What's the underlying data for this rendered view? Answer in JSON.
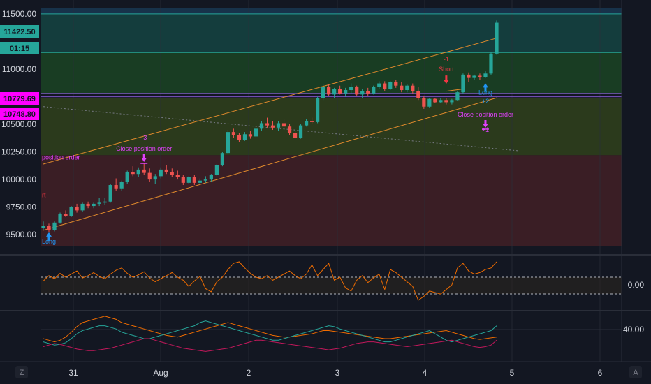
{
  "chart_data": {
    "type": "candlestick",
    "x_axis": {
      "labels": [
        "31",
        "Aug",
        "2",
        "3",
        "4",
        "5",
        "6"
      ]
    },
    "price_axis": {
      "ticks": [
        "11500.00",
        "11000.00",
        "10500.00",
        "10250.00",
        "10000.00",
        "9750.00",
        "9500.00"
      ],
      "ylim": [
        9400,
        11550
      ]
    },
    "badges": {
      "last_price": "11422.50",
      "countdown": "01:15",
      "level_upper": "10779.69",
      "level_lower": "10748.80",
      "last_price_color": "#26a69a",
      "level_color": "#ff00ff"
    },
    "zones": [
      {
        "from": 11500,
        "to": 11550,
        "color": "#17324a"
      },
      {
        "from": 11150,
        "to": 11500,
        "color": "#143d3d"
      },
      {
        "from": 10780,
        "to": 11150,
        "color": "#193d23"
      },
      {
        "from": 10220,
        "to": 10740,
        "color": "#2b3a1c"
      },
      {
        "from": 9400,
        "to": 10220,
        "color": "#3a1e25"
      }
    ],
    "levels": [
      11500,
      11150,
      10780,
      10749
    ],
    "candles": [
      [
        9560,
        9620,
        9540,
        9580
      ],
      [
        9580,
        9600,
        9520,
        9540
      ],
      [
        9540,
        9620,
        9530,
        9610
      ],
      [
        9610,
        9700,
        9600,
        9690
      ],
      [
        9690,
        9720,
        9660,
        9670
      ],
      [
        9670,
        9760,
        9660,
        9750
      ],
      [
        9750,
        9780,
        9700,
        9720
      ],
      [
        9720,
        9790,
        9710,
        9780
      ],
      [
        9780,
        9800,
        9740,
        9760
      ],
      [
        9760,
        9790,
        9740,
        9780
      ],
      [
        9780,
        9830,
        9760,
        9790
      ],
      [
        9790,
        9830,
        9770,
        9800
      ],
      [
        9800,
        9960,
        9790,
        9950
      ],
      [
        9950,
        10010,
        9900,
        9920
      ],
      [
        9920,
        9990,
        9900,
        9980
      ],
      [
        9980,
        10080,
        9960,
        10070
      ],
      [
        10070,
        10120,
        10030,
        10050
      ],
      [
        10050,
        10110,
        10020,
        10090
      ],
      [
        10090,
        10150,
        10040,
        10060
      ],
      [
        10060,
        10100,
        9980,
        10000
      ],
      [
        10000,
        10050,
        9960,
        10030
      ],
      [
        10030,
        10110,
        10010,
        10090
      ],
      [
        10090,
        10130,
        10050,
        10070
      ],
      [
        10070,
        10100,
        10020,
        10040
      ],
      [
        10040,
        10080,
        10000,
        10020
      ],
      [
        10020,
        10040,
        9950,
        9970
      ],
      [
        9970,
        10030,
        9960,
        10020
      ],
      [
        10020,
        10040,
        9950,
        9970
      ],
      [
        9970,
        10010,
        9950,
        9990
      ],
      [
        9990,
        10030,
        9970,
        10000
      ],
      [
        10000,
        10050,
        9980,
        10040
      ],
      [
        10040,
        10140,
        10030,
        10130
      ],
      [
        10130,
        10250,
        10120,
        10240
      ],
      [
        10240,
        10450,
        10230,
        10430
      ],
      [
        10430,
        10460,
        10380,
        10400
      ],
      [
        10400,
        10420,
        10340,
        10360
      ],
      [
        10360,
        10430,
        10350,
        10410
      ],
      [
        10410,
        10440,
        10370,
        10390
      ],
      [
        10390,
        10470,
        10380,
        10460
      ],
      [
        10460,
        10530,
        10440,
        10510
      ],
      [
        10510,
        10560,
        10470,
        10490
      ],
      [
        10490,
        10530,
        10450,
        10470
      ],
      [
        10470,
        10530,
        10440,
        10510
      ],
      [
        10510,
        10550,
        10460,
        10480
      ],
      [
        10480,
        10500,
        10400,
        10420
      ],
      [
        10420,
        10440,
        10370,
        10380
      ],
      [
        10380,
        10500,
        10370,
        10490
      ],
      [
        10490,
        10550,
        10480,
        10530
      ],
      [
        10530,
        10560,
        10500,
        10520
      ],
      [
        10520,
        10750,
        10510,
        10740
      ],
      [
        10740,
        10860,
        10720,
        10840
      ],
      [
        10840,
        10860,
        10760,
        10770
      ],
      [
        10770,
        10830,
        10740,
        10820
      ],
      [
        10820,
        10850,
        10770,
        10780
      ],
      [
        10780,
        10830,
        10750,
        10810
      ],
      [
        10810,
        10870,
        10780,
        10840
      ],
      [
        10840,
        10850,
        10760,
        10770
      ],
      [
        10770,
        10820,
        10740,
        10800
      ],
      [
        10800,
        10830,
        10760,
        10780
      ],
      [
        10780,
        10850,
        10770,
        10840
      ],
      [
        10840,
        10890,
        10820,
        10870
      ],
      [
        10870,
        10890,
        10800,
        10820
      ],
      [
        10820,
        10890,
        10810,
        10880
      ],
      [
        10880,
        10900,
        10830,
        10850
      ],
      [
        10850,
        10880,
        10790,
        10810
      ],
      [
        10810,
        10860,
        10790,
        10850
      ],
      [
        10850,
        10870,
        10780,
        10800
      ],
      [
        10800,
        10840,
        10720,
        10740
      ],
      [
        10740,
        10760,
        10640,
        10660
      ],
      [
        10660,
        10740,
        10650,
        10730
      ],
      [
        10730,
        10740,
        10690,
        10700
      ],
      [
        10700,
        10740,
        10690,
        10720
      ],
      [
        10720,
        10740,
        10680,
        10700
      ],
      [
        10700,
        10730,
        10680,
        10720
      ],
      [
        10720,
        10800,
        10710,
        10790
      ],
      [
        10790,
        10960,
        10780,
        10950
      ],
      [
        10950,
        10970,
        10880,
        10920
      ],
      [
        10920,
        10950,
        10900,
        10940
      ],
      [
        10940,
        10960,
        10900,
        10930
      ],
      [
        10930,
        10980,
        10920,
        10960
      ],
      [
        10960,
        11150,
        10950,
        11140
      ],
      [
        11140,
        11440,
        11130,
        11420
      ]
    ],
    "trend_channel": {
      "upper": [
        [
          0,
          10140
        ],
        [
          81,
          11280
        ]
      ],
      "lower": [
        [
          0,
          9540
        ],
        [
          81,
          10740
        ]
      ],
      "mid": [
        [
          72,
          10800
        ],
        [
          75,
          10820
        ]
      ],
      "dotted": [
        [
          0,
          10660
        ],
        [
          85,
          10260
        ]
      ]
    },
    "annotations": [
      {
        "text": "Long",
        "index": 1,
        "price": 9420,
        "kind": "long",
        "color": "#2196f3"
      },
      {
        "text": "Close position order",
        "index": 18,
        "price": 10260,
        "kind": "close",
        "color": "#e040fb"
      },
      {
        "text": "-3",
        "index": 18,
        "price": 10360,
        "kind": "plain",
        "color": "#e040fb"
      },
      {
        "text": "Short",
        "index": 72,
        "price": 10980,
        "kind": "short",
        "color": "#f23645"
      },
      {
        "text": "-1",
        "index": 72,
        "price": 11070,
        "kind": "plain",
        "color": "#f23645"
      },
      {
        "text": "Long",
        "index": 79,
        "price": 10770,
        "kind": "long",
        "color": "#2196f3"
      },
      {
        "text": "+2",
        "index": 79,
        "price": 10690,
        "kind": "plain",
        "color": "#2196f3"
      },
      {
        "text": "Close position order",
        "index": 79,
        "price": 10570,
        "kind": "close",
        "color": "#e040fb"
      },
      {
        "text": "+1",
        "index": 79,
        "price": 10430,
        "kind": "plain",
        "color": "#e040fb"
      },
      {
        "text": "position order",
        "index": 0,
        "price": 10180,
        "kind": "plain",
        "color": "#e040fb"
      },
      {
        "text": "rt",
        "index": 0,
        "price": 9840,
        "kind": "plain",
        "color": "#f23645"
      }
    ],
    "oscillator1": {
      "label": "0.00",
      "values": [
        5,
        12,
        8,
        15,
        10,
        14,
        18,
        9,
        12,
        16,
        11,
        8,
        14,
        19,
        22,
        15,
        10,
        13,
        17,
        9,
        4,
        8,
        12,
        16,
        10,
        6,
        -2,
        5,
        11,
        -5,
        -9,
        4,
        10,
        20,
        28,
        30,
        22,
        15,
        10,
        8,
        12,
        6,
        10,
        14,
        18,
        12,
        8,
        14,
        26,
        12,
        20,
        28,
        6,
        10,
        -4,
        -8,
        6,
        12,
        3,
        9,
        14,
        -6,
        20,
        16,
        10,
        4,
        -2,
        -20,
        -15,
        -8,
        -10,
        -12,
        -6,
        0,
        22,
        28,
        18,
        14,
        16,
        20,
        22,
        30
      ]
    },
    "oscillator2": {
      "label": "40.00",
      "series": [
        {
          "color": "#ef6c00",
          "values": [
            40,
            38,
            36,
            38,
            42,
            48,
            55,
            60,
            62,
            64,
            66,
            68,
            66,
            64,
            60,
            58,
            56,
            54,
            52,
            50,
            48,
            46,
            44,
            43,
            42,
            44,
            46,
            48,
            50,
            52,
            54,
            56,
            58,
            60,
            58,
            56,
            54,
            52,
            50,
            48,
            46,
            44,
            43,
            42,
            42,
            43,
            44,
            45,
            46,
            48,
            50,
            50,
            49,
            48,
            47,
            46,
            45,
            44,
            43,
            42,
            41,
            40,
            40,
            41,
            42,
            43,
            44,
            45,
            46,
            47,
            48,
            49,
            50,
            48,
            46,
            44,
            42,
            40,
            39,
            40,
            41,
            42
          ]
        },
        {
          "color": "#26a69a",
          "values": [
            36,
            34,
            32,
            33,
            35,
            40,
            46,
            50,
            52,
            54,
            56,
            56,
            54,
            52,
            48,
            46,
            44,
            42,
            40,
            40,
            42,
            44,
            46,
            48,
            50,
            52,
            54,
            56,
            60,
            62,
            60,
            58,
            56,
            54,
            52,
            50,
            48,
            46,
            44,
            42,
            40,
            38,
            38,
            40,
            42,
            44,
            46,
            48,
            50,
            52,
            54,
            56,
            55,
            52,
            50,
            48,
            46,
            44,
            42,
            40,
            38,
            36,
            36,
            38,
            40,
            42,
            44,
            46,
            48,
            50,
            46,
            42,
            38,
            36,
            38,
            40,
            42,
            44,
            46,
            48,
            50,
            56
          ]
        },
        {
          "color": "#c2185b",
          "values": [
            30,
            32,
            34,
            33,
            31,
            29,
            27,
            26,
            25,
            25,
            26,
            27,
            28,
            30,
            32,
            34,
            36,
            38,
            40,
            40,
            38,
            36,
            34,
            32,
            30,
            28,
            27,
            26,
            25,
            24,
            25,
            26,
            27,
            28,
            30,
            32,
            34,
            36,
            38,
            38,
            37,
            36,
            35,
            34,
            33,
            32,
            31,
            30,
            29,
            28,
            27,
            26,
            27,
            28,
            30,
            32,
            34,
            35,
            36,
            36,
            35,
            34,
            33,
            32,
            31,
            30,
            31,
            32,
            33,
            34,
            35,
            36,
            37,
            38,
            36,
            34,
            32,
            30,
            29,
            30,
            32,
            38
          ]
        }
      ]
    }
  },
  "footer": {
    "left_button": "Z",
    "right_button": "A"
  }
}
